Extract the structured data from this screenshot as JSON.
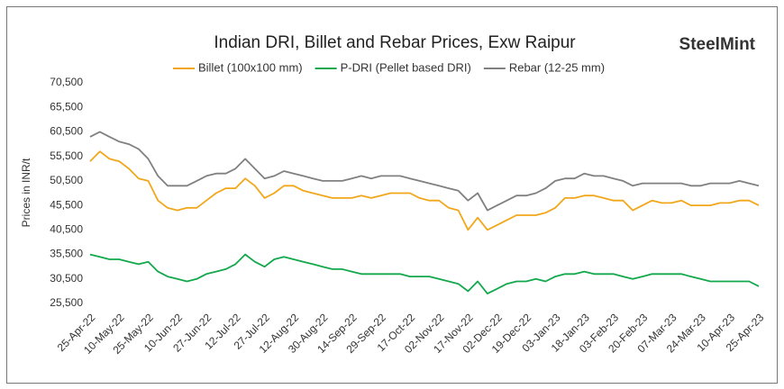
{
  "chart_data": {
    "type": "line",
    "title": "Indian DRI, Billet and Rebar Prices, Exw Raipur",
    "logo": "SteelMint",
    "ylabel": "Prices in INR/t",
    "categories": [
      "25-Apr-22",
      null,
      null,
      "10-May-22",
      null,
      null,
      "25-May-22",
      null,
      null,
      "10-Jun-22",
      null,
      null,
      "27-Jun-22",
      null,
      null,
      "12-Jul-22",
      null,
      null,
      "27-Jul-22",
      null,
      null,
      "12-Aug-22",
      null,
      null,
      "30-Aug-22",
      null,
      null,
      "14-Sep-22",
      null,
      null,
      "29-Sep-22",
      null,
      null,
      "17-Oct-22",
      null,
      null,
      "02-Nov-22",
      null,
      null,
      "17-Nov-22",
      null,
      null,
      "02-Dec-22",
      null,
      null,
      "19-Dec-22",
      null,
      null,
      "03-Jan-23",
      null,
      null,
      "18-Jan-23",
      null,
      null,
      "03-Feb-23",
      null,
      null,
      "20-Feb-23",
      null,
      null,
      "07-Mar-23",
      null,
      null,
      "24-Mar-23",
      null,
      null,
      "10-Apr-23",
      null,
      null,
      "25-Apr-23"
    ],
    "series": [
      {
        "name": "Billet (100x100 mm)",
        "color": "#f2a71b",
        "values": [
          54500,
          56500,
          55000,
          54500,
          53000,
          51000,
          50500,
          46500,
          45000,
          44500,
          45000,
          45000,
          46500,
          48000,
          49000,
          49000,
          51000,
          49500,
          47000,
          48000,
          49500,
          49500,
          48500,
          48000,
          47500,
          47000,
          47000,
          47000,
          47500,
          47000,
          47500,
          48000,
          48000,
          48000,
          47000,
          46500,
          46500,
          45000,
          44500,
          40500,
          43000,
          40500,
          41500,
          42500,
          43500,
          43500,
          43500,
          44000,
          45000,
          47000,
          47000,
          47500,
          47500,
          47000,
          46500,
          46500,
          44500,
          45500,
          46500,
          46000,
          46000,
          46500,
          45500,
          45500,
          45500,
          46000,
          46000,
          46500,
          46500,
          45500
        ]
      },
      {
        "name": "P-DRI (Pellet based DRI)",
        "color": "#12a84b",
        "values": [
          35500,
          35000,
          34500,
          34500,
          34000,
          33500,
          34000,
          32000,
          31000,
          30500,
          30000,
          30500,
          31500,
          32000,
          32500,
          33500,
          35500,
          34000,
          33000,
          34500,
          35000,
          34500,
          34000,
          33500,
          33000,
          32500,
          32500,
          32000,
          31500,
          31500,
          31500,
          31500,
          31500,
          31000,
          31000,
          31000,
          30500,
          30000,
          29500,
          28000,
          30000,
          27500,
          28500,
          29500,
          30000,
          30000,
          30500,
          30000,
          31000,
          31500,
          31500,
          32000,
          31500,
          31500,
          31500,
          31000,
          30500,
          31000,
          31500,
          31500,
          31500,
          31500,
          31000,
          30500,
          30000,
          30000,
          30000,
          30000,
          30000,
          29000
        ]
      },
      {
        "name": "Rebar (12-25 mm)",
        "color": "#808080",
        "values": [
          59500,
          60500,
          59500,
          58500,
          58000,
          57000,
          55000,
          51500,
          49500,
          49500,
          49500,
          50500,
          51500,
          52000,
          52000,
          53000,
          55000,
          53000,
          51000,
          51500,
          52500,
          52000,
          51500,
          51000,
          50500,
          50500,
          50500,
          51000,
          51500,
          51000,
          51500,
          51500,
          51500,
          51000,
          50500,
          50000,
          49500,
          49000,
          48500,
          46500,
          48000,
          44500,
          45500,
          46500,
          47500,
          47500,
          48000,
          49000,
          50500,
          51000,
          51000,
          52000,
          51500,
          51500,
          51000,
          50500,
          49500,
          50000,
          50000,
          50000,
          50000,
          50000,
          49500,
          49500,
          50000,
          50000,
          50000,
          50500,
          50000,
          49500
        ]
      }
    ],
    "ylim": [
      25500,
      70500
    ],
    "yticks": [
      {
        "value": 25500,
        "label": "25,500"
      },
      {
        "value": 30500,
        "label": "30,500"
      },
      {
        "value": 35500,
        "label": "35,500"
      },
      {
        "value": 40500,
        "label": "40,500"
      },
      {
        "value": 45500,
        "label": "45,500"
      },
      {
        "value": 50500,
        "label": "50,500"
      },
      {
        "value": 55500,
        "label": "55,500"
      },
      {
        "value": 60500,
        "label": "60,500"
      },
      {
        "value": 65500,
        "label": "65,500"
      },
      {
        "value": 70500,
        "label": "70,500"
      }
    ],
    "grid": false,
    "legend": "top"
  }
}
